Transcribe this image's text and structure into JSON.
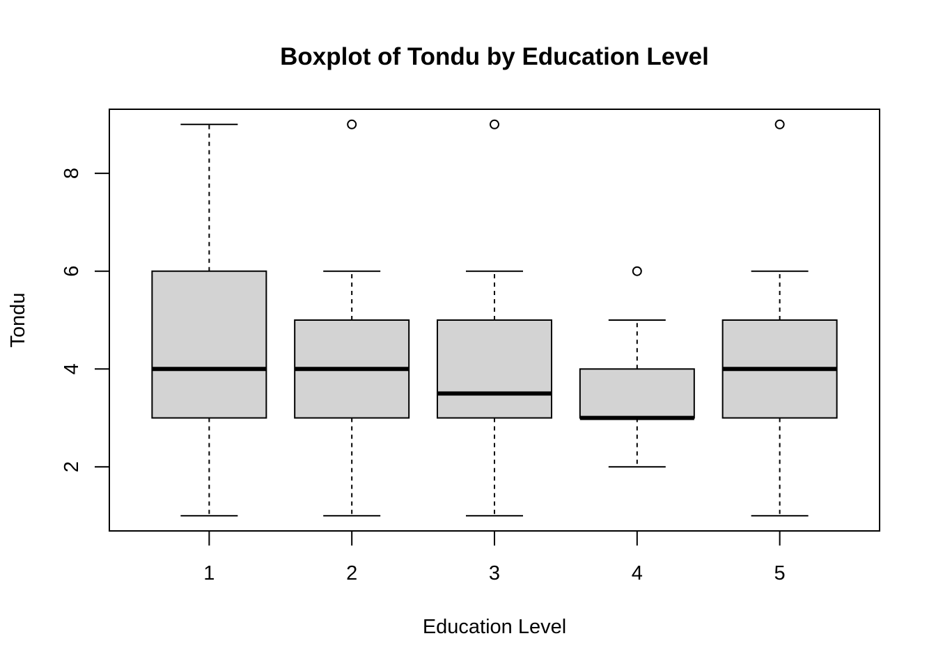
{
  "chart_data": {
    "type": "boxplot",
    "title": "Boxplot of Tondu by Education Level",
    "xlabel": "Education Level",
    "ylabel": "Tondu",
    "categories": [
      "1",
      "2",
      "3",
      "4",
      "5"
    ],
    "y_ticks": [
      2,
      4,
      6,
      8
    ],
    "ylim": [
      0.69,
      9.31
    ],
    "grid": false,
    "box_fill": "#d3d3d3",
    "boxes": [
      {
        "category": "1",
        "whisker_low": 1,
        "q1": 3,
        "median": 4,
        "q3": 6,
        "whisker_high": 9,
        "outliers": []
      },
      {
        "category": "2",
        "whisker_low": 1,
        "q1": 3,
        "median": 4,
        "q3": 5,
        "whisker_high": 6,
        "outliers": [
          9
        ]
      },
      {
        "category": "3",
        "whisker_low": 1,
        "q1": 3,
        "median": 3.5,
        "q3": 5,
        "whisker_high": 6,
        "outliers": [
          9
        ]
      },
      {
        "category": "4",
        "whisker_low": 2,
        "q1": 3,
        "median": 3,
        "q3": 4,
        "whisker_high": 5,
        "outliers": [
          6
        ]
      },
      {
        "category": "5",
        "whisker_low": 1,
        "q1": 3,
        "median": 4,
        "q3": 5,
        "whisker_high": 6,
        "outliers": [
          9
        ]
      }
    ]
  }
}
